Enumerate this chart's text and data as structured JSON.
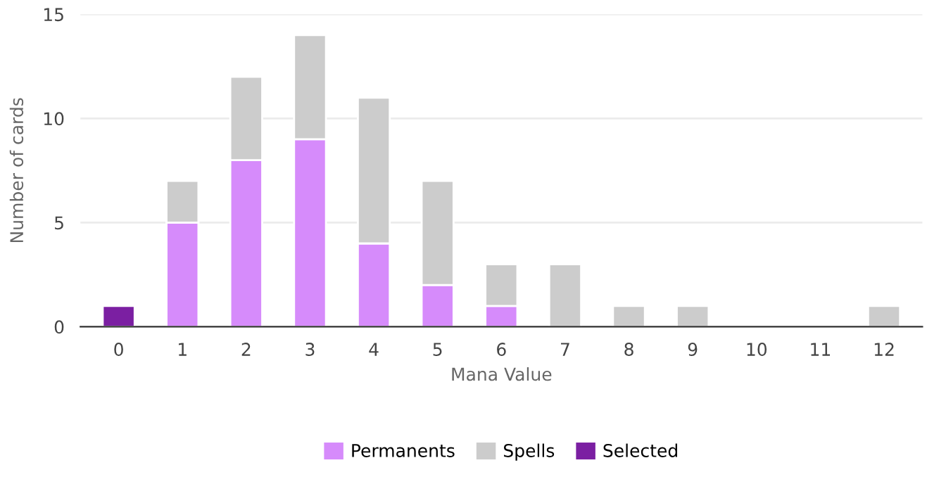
{
  "chart_data": {
    "type": "bar",
    "stacked": true,
    "xlabel": "Mana Value",
    "ylabel": "Number of cards",
    "categories": [
      "0",
      "1",
      "2",
      "3",
      "4",
      "5",
      "6",
      "7",
      "8",
      "9",
      "10",
      "11",
      "12"
    ],
    "series": [
      {
        "name": "Permanents",
        "color": "#d68bfb",
        "values": [
          null,
          5,
          8,
          9,
          4,
          2,
          1,
          null,
          null,
          null,
          null,
          null,
          null
        ]
      },
      {
        "name": "Spells",
        "color": "#cccccc",
        "values": [
          null,
          2,
          4,
          5,
          7,
          5,
          2,
          3,
          1,
          1,
          null,
          null,
          1
        ]
      },
      {
        "name": "Selected",
        "color": "#7b1fa2",
        "values": [
          1,
          null,
          null,
          null,
          null,
          null,
          null,
          null,
          null,
          null,
          null,
          null,
          null
        ]
      }
    ],
    "ylim": [
      0,
      15
    ],
    "yticks": [
      0,
      5,
      10,
      15
    ],
    "grid": "y",
    "legend": "bottom"
  }
}
